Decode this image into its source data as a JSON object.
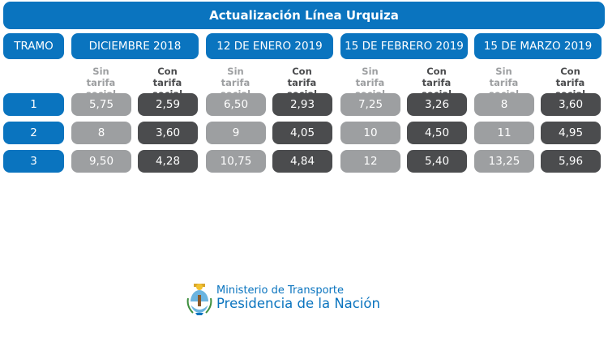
{
  "title": "Actualización Línea Urquiza",
  "tramo_header": "TRAMO",
  "periods": [
    {
      "label": "DICIEMBRE 2018"
    },
    {
      "label": "12 DE ENERO 2019"
    },
    {
      "label": "15 DE FEBRERO 2019"
    },
    {
      "label": "15 DE MARZO 2019"
    }
  ],
  "sub_headers": {
    "sin_line1": "Sin",
    "sin_line2": "tarifa social",
    "con_line1": "Con",
    "con_line2": "tarifa social"
  },
  "rows": [
    {
      "tramo": "1",
      "values": [
        "5,75",
        "2,59",
        "6,50",
        "2,93",
        "7,25",
        "3,26",
        "8",
        "3,60"
      ]
    },
    {
      "tramo": "2",
      "values": [
        "8",
        "3,60",
        "9",
        "4,05",
        "10",
        "4,50",
        "11",
        "4,95"
      ]
    },
    {
      "tramo": "3",
      "values": [
        "9,50",
        "4,28",
        "10,75",
        "4,84",
        "12",
        "5,40",
        "13,25",
        "5,96"
      ]
    }
  ],
  "footer": {
    "ministerio": "Ministerio de Transporte",
    "presidencia": "Presidencia de la Nación"
  },
  "colors": {
    "blue": "#0a74bf",
    "light_gray": "#9d9fa1",
    "dark_gray": "#4b4c4e"
  },
  "icons": {
    "logo": "argentina-coat-of-arms-icon"
  }
}
